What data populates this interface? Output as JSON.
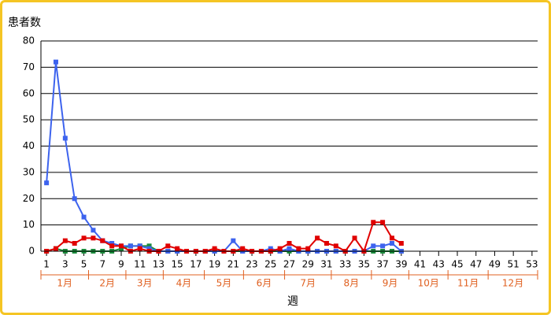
{
  "chart_data": {
    "type": "line",
    "title": "患者数",
    "x_label": "週",
    "x": [
      1,
      2,
      3,
      4,
      5,
      6,
      7,
      8,
      9,
      10,
      11,
      12,
      13,
      14,
      15,
      16,
      17,
      18,
      19,
      20,
      21,
      22,
      23,
      24,
      25,
      26,
      27,
      28,
      29,
      30,
      31,
      32,
      33,
      34,
      35,
      36,
      37,
      38,
      39
    ],
    "series": [
      {
        "name": "green",
        "color": "#1a8c3c",
        "values": [
          0,
          1,
          0,
          0,
          0,
          0,
          0,
          0,
          1,
          2,
          2,
          2,
          0,
          0,
          0,
          0,
          0,
          0,
          0,
          0,
          0,
          0,
          0,
          0,
          0,
          0,
          0,
          0,
          0,
          0,
          0,
          0,
          0,
          0,
          0,
          0,
          0,
          0,
          0
        ]
      },
      {
        "name": "blue",
        "color": "#3d63ee",
        "values": [
          26,
          72,
          43,
          20,
          13,
          8,
          4,
          3,
          2,
          2,
          2,
          1,
          0,
          0,
          0,
          0,
          0,
          0,
          0,
          0,
          4,
          0,
          0,
          0,
          1,
          0,
          1,
          0,
          0,
          0,
          0,
          0,
          0,
          0,
          0,
          2,
          2,
          3,
          0
        ]
      },
      {
        "name": "red",
        "color": "#e00000",
        "values": [
          0,
          1,
          4,
          3,
          5,
          5,
          4,
          2,
          2,
          0,
          1,
          0,
          0,
          2,
          1,
          0,
          0,
          0,
          1,
          0,
          0,
          1,
          0,
          0,
          0,
          1,
          3,
          1,
          1,
          5,
          3,
          2,
          0,
          5,
          0,
          11,
          11,
          5,
          3
        ]
      }
    ],
    "xlim": [
      0.4,
      53.6
    ],
    "xticks": [
      1,
      3,
      5,
      7,
      9,
      11,
      13,
      15,
      17,
      19,
      21,
      23,
      25,
      27,
      29,
      31,
      33,
      35,
      37,
      39,
      41,
      43,
      45,
      47,
      49,
      51,
      53
    ],
    "ylim": [
      0,
      80
    ],
    "yticks": [
      0,
      10,
      20,
      30,
      40,
      50,
      60,
      70,
      80
    ],
    "grid": true,
    "months": [
      "1月",
      "2月",
      "3月",
      "4月",
      "5月",
      "6月",
      "7月",
      "8月",
      "9月",
      "10月",
      "11月",
      "12月"
    ],
    "month_edges": [
      0.4,
      5.5,
      9.5,
      13.5,
      17.9,
      22.1,
      26.5,
      31.5,
      35.8,
      39.8,
      44,
      48.3,
      53.6
    ]
  }
}
